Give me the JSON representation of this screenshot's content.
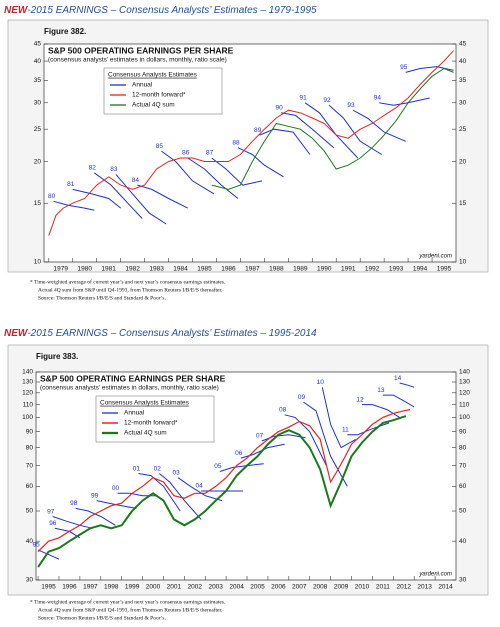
{
  "chart_data": [
    {
      "type": "line",
      "heading_tag": "NEW",
      "heading": "-2015 EARNINGS – Consensus Analysts’ Estimates – 1979-1995",
      "figure": "Figure 382.",
      "title": "S&P 500 OPERATING EARNINGS PER SHARE",
      "subtitle": "(consensus analysts’ estimates in dollars, monthly, ratio scale)",
      "legend_title": "Consensus Analysts Estimates",
      "source": "yardeni.com",
      "footnotes": [
        "*  Time-weighted average of current year’s and next year’s consensus earnings estimates.",
        "Actual 4Q sum from S&P until Q4-1993, from Thomson Reuters I/B/E/S thereafter.",
        "Source: Thomson Reuters I/B/E/S and Standard & Poor’s."
      ],
      "log_scale": true,
      "grid": false,
      "xlim": [
        1978.8,
        1996
      ],
      "xticks": [
        1979,
        1980,
        1981,
        1982,
        1983,
        1984,
        1985,
        1986,
        1987,
        1988,
        1989,
        1990,
        1991,
        1992,
        1993,
        1994,
        1995
      ],
      "ylim": [
        10,
        45
      ],
      "yticks": [
        10,
        15,
        20,
        25,
        30,
        35,
        40,
        45
      ],
      "series": [
        {
          "name": "Annual",
          "color": "#1f2fd0",
          "segments": [
            {
              "label": "80",
              "x": [
                1979.2,
                1979.8,
                1980.5,
                1980.9
              ],
              "values": [
                15.2,
                14.8,
                14.5,
                14.3
              ]
            },
            {
              "label": "81",
              "x": [
                1980.0,
                1980.8,
                1981.5,
                1982.0
              ],
              "values": [
                16.5,
                16,
                15.5,
                14.5
              ]
            },
            {
              "label": "82",
              "x": [
                1980.9,
                1981.6,
                1982.3,
                1982.9
              ],
              "values": [
                18.5,
                17,
                15,
                13.5
              ]
            },
            {
              "label": "83",
              "x": [
                1981.8,
                1982.5,
                1983.2,
                1983.9
              ],
              "values": [
                18.3,
                16,
                14,
                13
              ]
            },
            {
              "label": "84",
              "x": [
                1982.7,
                1983.3,
                1984.0,
                1984.8
              ],
              "values": [
                17,
                16.5,
                15.5,
                14.5
              ]
            },
            {
              "label": "85",
              "x": [
                1983.7,
                1984.3,
                1985.0,
                1985.9
              ],
              "values": [
                21.5,
                20,
                17.5,
                16
              ]
            },
            {
              "label": "86",
              "x": [
                1984.8,
                1985.5,
                1986.2,
                1986.9
              ],
              "values": [
                20.5,
                19,
                17,
                15.5
              ]
            },
            {
              "label": "87",
              "x": [
                1985.8,
                1986.4,
                1987.1,
                1987.9
              ],
              "values": [
                20.5,
                19,
                17,
                17.5
              ]
            },
            {
              "label": "88",
              "x": [
                1986.9,
                1987.5,
                1988.0,
                1988.8
              ],
              "values": [
                22,
                21,
                19.5,
                18
              ]
            },
            {
              "label": "89",
              "x": [
                1987.8,
                1988.4,
                1989.2,
                1989.9
              ],
              "values": [
                24,
                25,
                24.5,
                21
              ]
            },
            {
              "label": "90",
              "x": [
                1988.7,
                1989.3,
                1990.0,
                1990.9
              ],
              "values": [
                28,
                27.5,
                25,
                22
              ]
            },
            {
              "label": "91",
              "x": [
                1989.7,
                1990.3,
                1991.0,
                1991.9
              ],
              "values": [
                30,
                28,
                24,
                20.5
              ]
            },
            {
              "label": "92",
              "x": [
                1990.7,
                1991.3,
                1992.0,
                1992.9
              ],
              "values": [
                29.5,
                27,
                23,
                21
              ]
            },
            {
              "label": "93",
              "x": [
                1991.7,
                1992.3,
                1993.0,
                1993.9
              ],
              "values": [
                28.5,
                27,
                24.5,
                23
              ]
            },
            {
              "label": "94",
              "x": [
                1992.8,
                1993.4,
                1994.0,
                1994.9
              ],
              "values": [
                30,
                29.5,
                30,
                31
              ]
            },
            {
              "label": "95",
              "x": [
                1993.9,
                1994.5,
                1995.2,
                1995.9
              ],
              "values": [
                37,
                38,
                38.5,
                37.5
              ]
            }
          ]
        },
        {
          "name": "12-month forward*",
          "color": "#e8231b",
          "x": [
            1979.0,
            1979.3,
            1979.6,
            1980,
            1980.5,
            1981,
            1981.5,
            1982,
            1982.5,
            1983,
            1983.5,
            1984,
            1984.5,
            1985,
            1985.5,
            1986,
            1986.5,
            1987,
            1987.5,
            1988,
            1988.5,
            1989,
            1989.5,
            1990,
            1990.5,
            1991,
            1991.5,
            1992,
            1992.5,
            1993,
            1993.5,
            1994,
            1994.5,
            1995,
            1995.5,
            1995.9
          ],
          "values": [
            12,
            13.8,
            14.5,
            15,
            15.5,
            17,
            18,
            17,
            16.5,
            17,
            19,
            20,
            20.5,
            20.5,
            20,
            20,
            20,
            21,
            23,
            25,
            27,
            28.5,
            28,
            27,
            26,
            24,
            23.5,
            25,
            26,
            27.5,
            29,
            31,
            34,
            37,
            40,
            43
          ]
        },
        {
          "name": "Actual 4Q sum",
          "color": "#1a7a1a",
          "x": [
            1985.8,
            1986.5,
            1987,
            1987.5,
            1988,
            1988.5,
            1989,
            1989.5,
            1990,
            1990.5,
            1991,
            1991.5,
            1992,
            1992.5,
            1993,
            1993.5,
            1994,
            1994.5,
            1995,
            1995.5,
            1995.9
          ],
          "values": [
            17,
            16.5,
            17,
            20,
            23,
            26,
            25.5,
            25,
            23.5,
            21.5,
            19,
            19.5,
            20.5,
            22,
            24,
            26.5,
            30,
            33,
            36,
            38,
            37
          ]
        }
      ]
    },
    {
      "type": "line",
      "heading_tag": "NEW",
      "heading": "-2015 EARNINGS – Consensus Analysts’ Estimates – 1995-2014",
      "figure": "Figure 383.",
      "title": "S&P 500 OPERATING EARNINGS PER SHARE",
      "subtitle": "(consensus analysts’ estimates in dollars, monthly, ratio scale)",
      "legend_title": "Consensus Analysts Estimates",
      "source": "yardeni.com",
      "footnotes": [
        "*  Time-weighted average of current year’s and next year’s consensus earnings estimates.",
        "Actual 4Q sum from S&P until Q4-1993, from Thomson Reuters I/B/E/S thereafter.",
        "Source: Thomson Reuters I/B/E/S and Standard & Poor’s."
      ],
      "log_scale": true,
      "grid": false,
      "xlim": [
        1994.9,
        2015
      ],
      "xticks": [
        1995,
        1996,
        1997,
        1998,
        1999,
        2000,
        2001,
        2002,
        2003,
        2004,
        2005,
        2006,
        2007,
        2008,
        2009,
        2010,
        2011,
        2012,
        2013,
        2014
      ],
      "ylim": [
        30,
        140
      ],
      "yticks": [
        30,
        40,
        50,
        60,
        70,
        80,
        90,
        100,
        110,
        120,
        130,
        140
      ],
      "series": [
        {
          "name": "Annual",
          "color": "#1f2fd0",
          "segments": [
            {
              "label": "95",
              "x": [
                1995.0,
                1995.6,
                1996.0
              ],
              "values": [
                37.5,
                36,
                35
              ]
            },
            {
              "label": "96",
              "x": [
                1995.8,
                1996.5,
                1997.0
              ],
              "values": [
                44,
                43,
                41
              ]
            },
            {
              "label": "97",
              "x": [
                1995.7,
                1996.3,
                1997.0,
                1997.6
              ],
              "values": [
                48,
                46.5,
                45,
                44
              ]
            },
            {
              "label": "98",
              "x": [
                1996.8,
                1997.4,
                1998.0,
                1998.7
              ],
              "values": [
                51,
                50,
                48,
                45
              ]
            },
            {
              "label": "99",
              "x": [
                1997.8,
                1998.4,
                1999.0,
                1999.7
              ],
              "values": [
                54,
                53,
                52,
                51
              ]
            },
            {
              "label": "00",
              "x": [
                1998.8,
                1999.4,
                2000.0,
                2000.7
              ],
              "values": [
                57,
                57,
                56,
                56
              ]
            },
            {
              "label": "01",
              "x": [
                1999.8,
                2000.4,
                2001.0,
                2001.8
              ],
              "values": [
                66,
                65,
                60,
                50
              ]
            },
            {
              "label": "02",
              "x": [
                2000.8,
                2001.3,
                2002.0,
                2002.8
              ],
              "values": [
                66,
                62,
                54,
                47
              ]
            },
            {
              "label": "03",
              "x": [
                2001.7,
                2002.3,
                2003.0,
                2003.8
              ],
              "values": [
                64,
                60,
                56,
                54
              ]
            },
            {
              "label": "04",
              "x": [
                2002.8,
                2003.4,
                2004.0,
                2004.8
              ],
              "values": [
                58,
                58,
                58,
                58
              ]
            },
            {
              "label": "05",
              "x": [
                2003.7,
                2004.3,
                2005.0,
                2005.8
              ],
              "values": [
                67,
                69,
                70,
                71
              ]
            },
            {
              "label": "06",
              "x": [
                2004.7,
                2005.3,
                2006.0,
                2006.8
              ],
              "values": [
                74,
                76,
                80,
                82
              ]
            },
            {
              "label": "07",
              "x": [
                2005.7,
                2006.3,
                2007.0,
                2007.8
              ],
              "values": [
                84,
                87,
                88,
                86
              ]
            },
            {
              "label": "08",
              "x": [
                2006.8,
                2007.3,
                2008.0,
                2008.8
              ],
              "values": [
                102,
                100,
                90,
                70
              ]
            },
            {
              "label": "09",
              "x": [
                2007.7,
                2008.3,
                2009.0,
                2009.8
              ],
              "values": [
                112,
                105,
                75,
                60
              ]
            },
            {
              "label": "10",
              "x": [
                2008.6,
                2009.0,
                2009.5,
                2010.2
              ],
              "values": [
                125,
                95,
                80,
                85
              ]
            },
            {
              "label": "11",
              "x": [
                2009.8,
                2010.3,
                2011.0,
                2011.8
              ],
              "values": [
                88,
                88,
                92,
                96
              ]
            },
            {
              "label": "12",
              "x": [
                2010.5,
                2011.0,
                2011.7,
                2012.3
              ],
              "values": [
                110,
                110,
                106,
                100
              ]
            },
            {
              "label": "13",
              "x": [
                2011.5,
                2012.0,
                2012.6,
                2013.0
              ],
              "values": [
                118,
                118,
                112,
                108
              ]
            },
            {
              "label": "14",
              "x": [
                2012.3,
                2012.7,
                2013.0
              ],
              "values": [
                129,
                127,
                125
              ]
            }
          ]
        },
        {
          "name": "12-month forward*",
          "color": "#e8231b",
          "x": [
            1995,
            1995.5,
            1996,
            1996.5,
            1997,
            1997.5,
            1998,
            1998.5,
            1999,
            1999.5,
            2000,
            2000.5,
            2001,
            2001.5,
            2002,
            2002.5,
            2003,
            2003.5,
            2004,
            2004.5,
            2005,
            2005.5,
            2006,
            2006.5,
            2007,
            2007.5,
            2008,
            2008.5,
            2009,
            2009.3,
            2009.7,
            2010,
            2010.5,
            2011,
            2011.5,
            2012,
            2012.5,
            2012.8
          ],
          "values": [
            37,
            40,
            41,
            43,
            45,
            48,
            50,
            52,
            53,
            57,
            60,
            64,
            62,
            56,
            55,
            57,
            57,
            60,
            64,
            70,
            74,
            80,
            85,
            90,
            93,
            97,
            94,
            85,
            62,
            67,
            75,
            82,
            88,
            95,
            100,
            103,
            105,
            106
          ]
        },
        {
          "name": "Actual 4Q sum",
          "color": "#1a7a1a",
          "x": [
            1995,
            1995.5,
            1996,
            1996.5,
            1997,
            1997.5,
            1998,
            1998.5,
            1999,
            1999.5,
            2000,
            2000.5,
            2001,
            2001.5,
            2002,
            2002.5,
            2003,
            2003.5,
            2004,
            2004.5,
            2005,
            2005.5,
            2006,
            2006.5,
            2007,
            2007.5,
            2008,
            2008.5,
            2009,
            2009.5,
            2010,
            2010.5,
            2011,
            2011.5,
            2012,
            2012.6
          ],
          "values": [
            33,
            37,
            38,
            40,
            42,
            44,
            45,
            44,
            45,
            50,
            54,
            57,
            54,
            47,
            45,
            47,
            50,
            54,
            58,
            65,
            70,
            75,
            82,
            88,
            91,
            88,
            80,
            68,
            52,
            62,
            75,
            83,
            90,
            96,
            98,
            101
          ]
        }
      ]
    }
  ]
}
